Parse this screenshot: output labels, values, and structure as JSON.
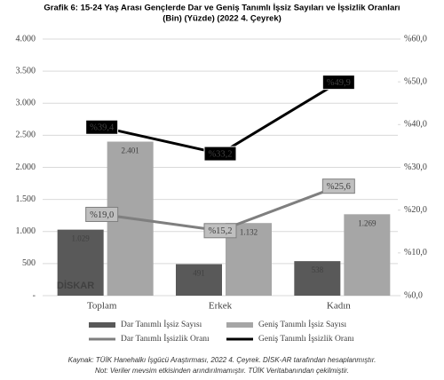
{
  "chart_data": {
    "type": "bar-line",
    "title": "Grafik 6: 15-24 Yaş Arası Gençlerde Dar ve Geniş Tanımlı İşsiz Sayıları ve İşsizlik Oranları",
    "subtitle": "(Bin) (Yüzde) (2022 4. Çeyrek)",
    "categories": [
      "Toplam",
      "Erkek",
      "Kadın"
    ],
    "series": [
      {
        "name": "Dar Tanımlı İşsiz Sayısı",
        "type": "bar",
        "color": "#595959",
        "values": [
          1029,
          491,
          538
        ],
        "value_labels": [
          "1.029",
          "491",
          "538"
        ]
      },
      {
        "name": "Geniş Tanımlı İşsiz Sayısı",
        "type": "bar",
        "color": "#a6a6a6",
        "values": [
          2401,
          1132,
          1269
        ],
        "value_labels": [
          "2.401",
          "1.132",
          "1.269"
        ]
      },
      {
        "name": "Dar Tanımlı İşsizlik Oranı",
        "type": "line",
        "axis": "y2",
        "color": "#7f7f7f",
        "values": [
          19.0,
          15.2,
          25.6
        ],
        "value_labels": [
          "%19,0",
          "%15,2",
          "%25,6"
        ]
      },
      {
        "name": "Geniş Tanımlı İşsizlik Oranı",
        "type": "line",
        "axis": "y2",
        "color": "#000000",
        "values": [
          39.4,
          33.2,
          49.9
        ],
        "value_labels": [
          "%39,4",
          "%33,2",
          "%49,9"
        ]
      }
    ],
    "ylim": [
      0,
      4000
    ],
    "yticks": [
      {
        "value": 0,
        "label": "-"
      },
      500,
      {
        "value": 1000,
        "label": "1.000"
      },
      {
        "value": 1500,
        "label": "1.500"
      },
      {
        "value": 2000,
        "label": "2.000"
      },
      {
        "value": 2500,
        "label": "2.500"
      },
      {
        "value": 3000,
        "label": "3.000"
      },
      {
        "value": 3500,
        "label": "3.500"
      },
      {
        "value": 4000,
        "label": "4.000"
      }
    ],
    "y2lim": [
      0,
      60
    ],
    "y2ticks": [
      {
        "value": 0,
        "label": "%0,0"
      },
      {
        "value": 10,
        "label": "%10,0"
      },
      {
        "value": 20,
        "label": "%20,0"
      },
      {
        "value": 30,
        "label": "%30,0"
      },
      {
        "value": 40,
        "label": "%40,0"
      },
      {
        "value": 50,
        "label": "%50,0"
      },
      {
        "value": 60,
        "label": "%60,0"
      }
    ],
    "grid": true,
    "legend": "bottom",
    "watermark": "DİSKAR",
    "notes": [
      "Kaynak: TÜİK Hanehalkı İşgücü Araştırması, 2022 4. Çeyrek. DİSK-AR tarafından hesaplanmıştır.",
      "Not: Veriler mevsim etkisinden arındırılmamıştır. TÜİK Veritabanından çekilmiştir."
    ]
  }
}
